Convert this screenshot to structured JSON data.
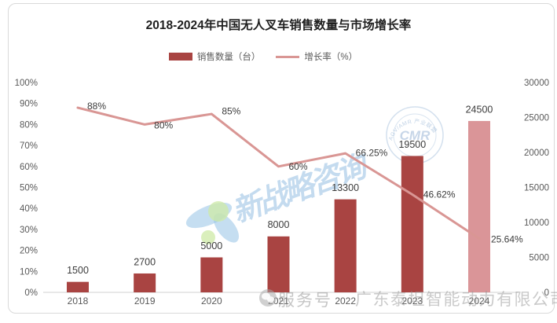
{
  "title": "2018-2024年中国无人叉车销售数量与市场增长率",
  "legend": [
    {
      "label": "销售数量（台）",
      "type": "bar"
    },
    {
      "label": "增长率（%）",
      "type": "line"
    }
  ],
  "colors": {
    "bar": "#a94442",
    "bar_2024": "#da9598",
    "line": "#d99694",
    "axis_text": "#595959",
    "label_text": "#3b3b3b",
    "axis_line": "#d9d9d9",
    "watermark_blue": "#aacfeb",
    "watermark_green": "#d9edbb",
    "seal_blue": "#9db9d6"
  },
  "chart_data": {
    "type": "bar+line combo",
    "categories": [
      "2018",
      "2019",
      "2020",
      "2021",
      "2022",
      "2023",
      "2024"
    ],
    "series": [
      {
        "name": "销售数量（台）",
        "type": "bar",
        "axis": "right",
        "values": [
          1500,
          2700,
          5000,
          8000,
          13300,
          19500,
          24500
        ],
        "labels": [
          "1500",
          "2700",
          "5000",
          "8000",
          "13300",
          "19500",
          "24500"
        ]
      },
      {
        "name": "增长率（%）",
        "type": "line",
        "axis": "left",
        "values": [
          88,
          80,
          85,
          60,
          66.25,
          46.62,
          25.64
        ],
        "labels": [
          "88%",
          "80%",
          "85%",
          "60%",
          "66.25%",
          "46.62%",
          "25.64%"
        ]
      }
    ],
    "left_axis": {
      "min": 0,
      "max": 100,
      "ticks": [
        "100%",
        "90%",
        "80%",
        "70%",
        "60%",
        "50%",
        "40%",
        "30%",
        "20%",
        "10%",
        "0%"
      ]
    },
    "right_axis": {
      "min": 0,
      "max": 30000,
      "ticks": [
        "30000",
        "25000",
        "20000",
        "15000",
        "10000",
        "5000",
        "0"
      ]
    },
    "grid": false,
    "legend_position": "top"
  },
  "watermarks": {
    "brand": "新战略咨询",
    "seal_arc": "AGV/AMR 产业联盟",
    "seal_center": "CMR",
    "service": "服务号",
    "company": "广东泰坦智能动力有限公司"
  }
}
